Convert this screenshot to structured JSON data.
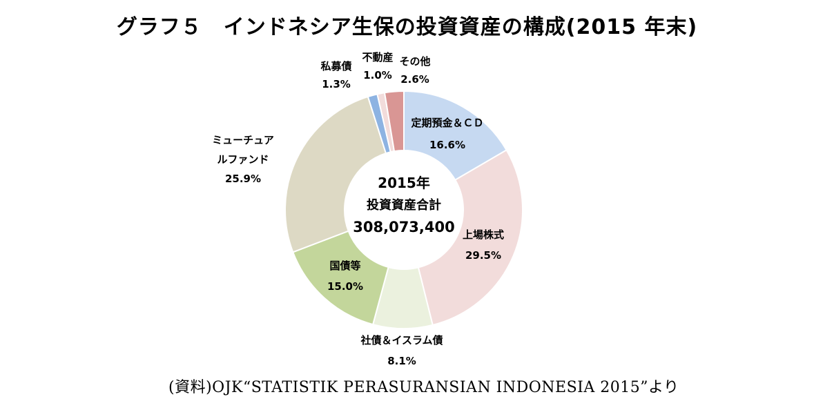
{
  "title": "グラフ５　インドネシア生保の投資資産の構成(2015 年末)",
  "source": "(資料)OJK“STATISTIK PERASURANSIAN INDONESIA 2015”より",
  "center": {
    "line1": "2015年",
    "line2": "投資資産合計",
    "line3": "308,073,400"
  },
  "chart_data": {
    "type": "pie",
    "donut": true,
    "start": "12 o'clock, clockwise",
    "slices": [
      {
        "name": "定期預金＆ＣＤ",
        "value": 16.6,
        "label": "16.6%",
        "color": "#c6d9f1"
      },
      {
        "name": "上場株式",
        "value": 29.5,
        "label": "29.5%",
        "color": "#f2dcdb"
      },
      {
        "name": "社債＆イスラム債",
        "value": 8.1,
        "label": "8.1%",
        "color": "#ebf1de"
      },
      {
        "name": "国債等",
        "value": 15.0,
        "label": "15.0%",
        "color": "#c3d69b"
      },
      {
        "name": "ミューチュアルファンド",
        "value": 25.9,
        "label": "25.9%",
        "color": "#ddd9c4"
      },
      {
        "name": "私募債",
        "value": 1.3,
        "label": "1.3%",
        "color": "#8db3e2"
      },
      {
        "name": "不動産",
        "value": 1.0,
        "label": "1.0%",
        "color": "#f2dcdb"
      },
      {
        "name": "その他",
        "value": 2.6,
        "label": "2.6%",
        "color": "#d99694"
      }
    ]
  }
}
